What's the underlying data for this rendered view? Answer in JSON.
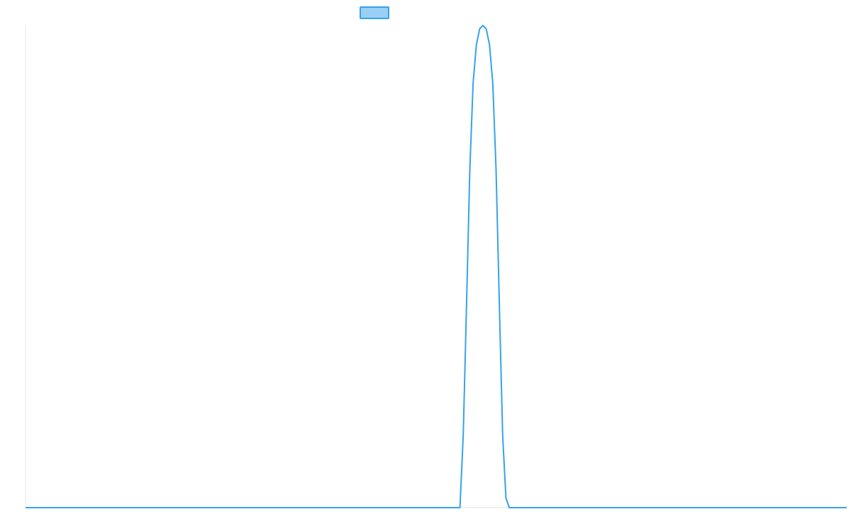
{
  "chart_data": {
    "type": "line",
    "title": "",
    "xlabel": "",
    "ylabel": "",
    "legend": {
      "placement": "top-center"
    },
    "grid": false,
    "xlim": [
      0,
      100
    ],
    "ylim": [
      0,
      1
    ],
    "series": [
      {
        "color": "#36a2eb",
        "fill_color": "#9ad0f5",
        "x": [
          0,
          52.9,
          53.3,
          53.7,
          54.1,
          54.5,
          54.9,
          55.3,
          55.7,
          56.1,
          56.5,
          56.9,
          57.3,
          57.7,
          58.1,
          58.5,
          58.9,
          100
        ],
        "y": [
          0,
          0,
          0.15,
          0.42,
          0.7,
          0.88,
          0.96,
          0.993,
          1.0,
          0.993,
          0.96,
          0.88,
          0.7,
          0.42,
          0.15,
          0.02,
          0,
          0
        ]
      }
    ]
  }
}
